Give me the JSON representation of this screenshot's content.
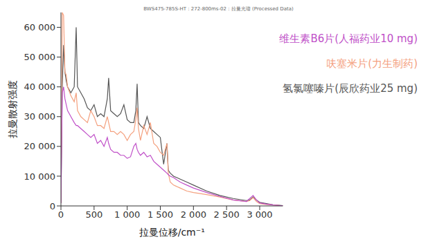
{
  "chart_data": {
    "type": "line",
    "title": "BWS475-785S-HT : 272-800ms-02 : 拉曼光谱 (Processed Data)",
    "x_label": "拉曼位移/cm⁻¹",
    "y_label": "拉曼散射强度",
    "x": [
      0,
      20,
      40,
      60,
      80,
      100,
      150,
      200,
      230,
      250,
      300,
      350,
      400,
      450,
      500,
      550,
      600,
      650,
      700,
      720,
      750,
      800,
      850,
      900,
      950,
      1000,
      1050,
      1100,
      1130,
      1150,
      1170,
      1200,
      1250,
      1300,
      1350,
      1400,
      1450,
      1500,
      1550,
      1600,
      1620,
      1650,
      1700,
      1800,
      1900,
      2000,
      2200,
      2400,
      2600,
      2800,
      2850,
      2900,
      2950,
      3000,
      3100,
      3200,
      3300,
      3350
    ],
    "series": [
      {
        "name": "氢氯噻嗪片(辰欣药业25 mg)",
        "color": "#555555",
        "values": [
          1000,
          40000,
          54000,
          45000,
          42000,
          40000,
          38000,
          40000,
          60000,
          40000,
          38000,
          36000,
          33000,
          32000,
          34000,
          30000,
          31000,
          30000,
          36000,
          43000,
          32000,
          31000,
          30000,
          31000,
          34000,
          29000,
          28000,
          28000,
          32000,
          41000,
          28000,
          27000,
          26000,
          30000,
          26000,
          25000,
          24000,
          23000,
          14000,
          21000,
          12000,
          11000,
          10000,
          9000,
          8000,
          7000,
          5000,
          3500,
          2500,
          1800,
          2000,
          3000,
          2000,
          1200,
          800,
          400,
          200,
          100
        ]
      },
      {
        "name": "呋塞米片(力生制药)",
        "color": "#f4a07e",
        "values": [
          1000,
          65000,
          64000,
          45000,
          44000,
          40000,
          37000,
          35000,
          38000,
          32000,
          30000,
          29000,
          28000,
          32000,
          30000,
          27000,
          27000,
          26000,
          30000,
          28000,
          25000,
          25000,
          24000,
          25000,
          24000,
          22000,
          24000,
          25000,
          29000,
          33000,
          26000,
          22000,
          27000,
          24000,
          28000,
          21000,
          20000,
          18000,
          17000,
          21000,
          11000,
          8000,
          7000,
          6000,
          5000,
          4500,
          3800,
          3000,
          2000,
          1500,
          1800,
          2800,
          1500,
          800,
          500,
          300,
          150,
          100
        ]
      },
      {
        "name": "维生素B6片(人福药业10 mg)",
        "color": "#c050c8",
        "values": [
          1000,
          38000,
          40000,
          36000,
          34000,
          32000,
          30000,
          28000,
          27000,
          27000,
          26000,
          25000,
          24000,
          23000,
          24000,
          21000,
          22000,
          20000,
          23000,
          21000,
          19000,
          18000,
          18000,
          17000,
          17000,
          16000,
          16500,
          20000,
          21000,
          19000,
          18000,
          17000,
          18000,
          16500,
          17000,
          15000,
          14000,
          13000,
          12000,
          11000,
          10500,
          10000,
          9500,
          8000,
          7000,
          6000,
          4500,
          3200,
          2000,
          1500,
          2500,
          3500,
          2000,
          1000,
          600,
          300,
          150,
          100
        ]
      }
    ],
    "xlim": [
      0,
      3350
    ],
    "xticks": [
      0,
      500,
      {
        "value": 1000,
        "label": "1 000"
      },
      {
        "value": 1500,
        "label": "1 500"
      },
      {
        "value": 2000,
        "label": "2 000"
      },
      {
        "value": 2500,
        "label": "2 500"
      },
      {
        "value": 3000,
        "label": "3 000"
      }
    ],
    "ylim": [
      0,
      65000
    ],
    "yticks": [
      0,
      {
        "value": 10000,
        "label": "10 000"
      },
      {
        "value": 20000,
        "label": "20 000"
      },
      {
        "value": 30000,
        "label": "30 000"
      },
      {
        "value": 40000,
        "label": "40 000"
      },
      {
        "value": 50000,
        "label": "50 000"
      },
      {
        "value": 60000,
        "label": "60 000"
      }
    ],
    "grid": false,
    "legend": "top-right"
  }
}
